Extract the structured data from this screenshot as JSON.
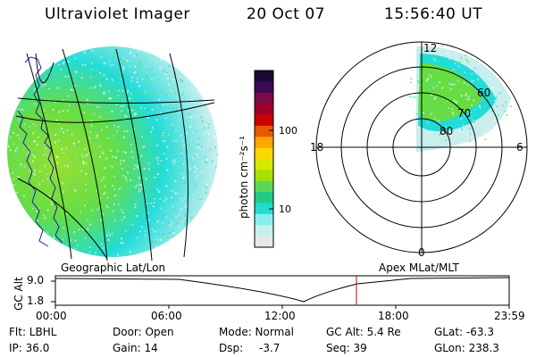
{
  "header": {
    "instrument": "Ultraviolet Imager",
    "date": "20 Oct 07",
    "time": "15:56:40 UT"
  },
  "colorbar": {
    "unit_label": "photon cm⁻²s⁻¹",
    "ticks": [
      "100",
      "10"
    ],
    "colors": [
      "#1a0a33",
      "#3a0a55",
      "#7a0a4a",
      "#a0002a",
      "#cc0000",
      "#e65a00",
      "#ffa500",
      "#ffd700",
      "#d6e800",
      "#a6e000",
      "#5ad85a",
      "#22cc88",
      "#22ddd0",
      "#8aeeee",
      "#c8eeee",
      "#e8e8e8"
    ]
  },
  "geo_panel": {
    "title": "Geographic Lat/Lon",
    "colors": {
      "low": "#ccefef",
      "mid": "#22dcd8",
      "high": "#66dd44",
      "peak": "#99e033",
      "coast": "#1a1aa0"
    }
  },
  "polar_panel": {
    "title": "Apex MLat/MLT",
    "mlt_labels": {
      "top": "12",
      "right": "6",
      "bottom": "0",
      "left": "18"
    },
    "lat_labels": [
      "60",
      "70",
      "80"
    ]
  },
  "timeline": {
    "ylabel": "GC Alt",
    "y_ticks": [
      "9.0",
      "1.8"
    ],
    "x_ticks": [
      "00:00",
      "06:00",
      "12:00",
      "18:00",
      "23:59"
    ],
    "marker_time": "15:56",
    "marker_color": "#cc0000"
  },
  "status": {
    "filter": "Flt: LBHL",
    "ip": "IP: 36.0",
    "door": "Door: Open",
    "gain": "Gain: 14",
    "mode": "Mode: Normal",
    "dsp_label": "Dsp:",
    "dsp_value": "-3.7",
    "gc_alt": "GC Alt: 5.4 Re",
    "seq": "Seq: 39",
    "glat": "GLat: -63.3",
    "glon": "GLon: 238.3"
  }
}
